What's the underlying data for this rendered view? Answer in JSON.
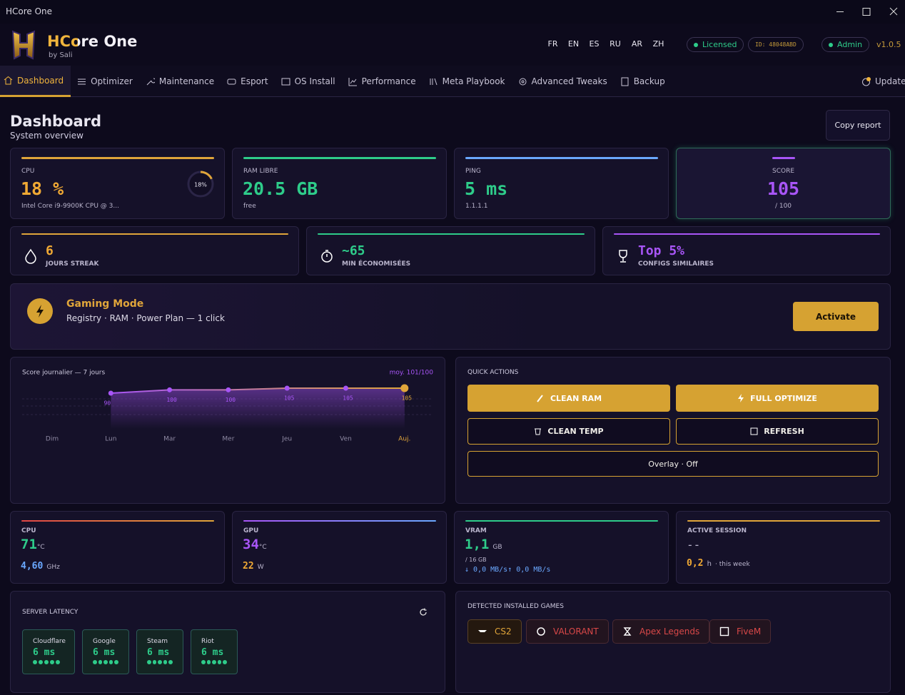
{
  "window": {
    "title": "HCore One"
  },
  "header": {
    "app_name": "HCore One",
    "byline": "by Sali",
    "languages": [
      "FR",
      "EN",
      "ES",
      "RU",
      "AR",
      "ZH"
    ],
    "license_status": "Licensed",
    "machine_id": "ID: 48048ABD",
    "role": "Admin",
    "version": "v1.0.5"
  },
  "nav": {
    "tabs": [
      "Dashboard",
      "Optimizer",
      "Maintenance",
      "Esport",
      "OS Install",
      "Performance",
      "Meta Playbook",
      "Advanced Tweaks",
      "Backup"
    ],
    "update": "Update"
  },
  "page": {
    "title": "Dashboard",
    "subtitle": "System overview",
    "copy_report": "Copy report"
  },
  "stat_cards": [
    {
      "label": "CPU",
      "value": "18 %",
      "detail": "Intel Core i9-9900K CPU @ 3...",
      "gauge": {
        "value": 18,
        "label": "18%"
      }
    },
    {
      "label": "RAM LIBRE",
      "value": "20.5 GB",
      "detail": "free"
    },
    {
      "label": "PING",
      "value": "5 ms",
      "detail": "1.1.1.1"
    },
    {
      "label": "SCORE",
      "value": "105",
      "detail": "/ 100"
    }
  ],
  "highlights": [
    {
      "value": "6",
      "label": "JOURS STREAK"
    },
    {
      "value": "~65",
      "label": "MIN ÉCONOMISÉES"
    },
    {
      "value": "Top 5%",
      "label": "CONFIGS SIMILAIRES"
    }
  ],
  "gaming_mode": {
    "title": "Gaming Mode",
    "description": "Registry · RAM · Power Plan — 1 click",
    "button": "Activate"
  },
  "score_chart": {
    "type": "line",
    "title": "Score journalier — 7 jours",
    "average": "moy. 101/100",
    "categories": [
      "Dim",
      "Lun",
      "Mar",
      "Mer",
      "Jeu",
      "Ven",
      "Auj."
    ],
    "values": [
      null,
      90,
      100,
      100,
      105,
      105,
      105
    ],
    "ylim": [
      0,
      120
    ]
  },
  "quick_actions": {
    "title": "QUICK ACTIONS",
    "buttons": [
      "CLEAN RAM",
      "FULL OPTIMIZE",
      "CLEAN TEMP",
      "REFRESH"
    ],
    "overlay": "Overlay · Off"
  },
  "hardware": [
    {
      "label": "CPU",
      "value": "71",
      "unit": "°C",
      "secondary": "4,60",
      "secondary_unit": "GHz"
    },
    {
      "label": "GPU",
      "value": "34",
      "unit": "°C",
      "secondary": "22",
      "secondary_unit": "W"
    },
    {
      "label": "VRAM",
      "value": "1,1",
      "unit": "GB",
      "total": "/ 16 GB",
      "traffic": "↓ 0,0 MB/s↑ 0,0 MB/s"
    },
    {
      "label": "ACTIVE SESSION",
      "value": "--",
      "secondary": "0,2",
      "secondary_unit": "h",
      "note": "· this week"
    }
  ],
  "server_latency": {
    "title": "SERVER LATENCY",
    "servers": [
      {
        "name": "Cloudflare",
        "latency": "6 ms"
      },
      {
        "name": "Google",
        "latency": "6 ms"
      },
      {
        "name": "Steam",
        "latency": "6 ms"
      },
      {
        "name": "Riot",
        "latency": "6 ms"
      }
    ]
  },
  "games": {
    "title": "DETECTED INSTALLED GAMES",
    "items": [
      "CS2",
      "VALORANT",
      "Apex Legends",
      "FiveM"
    ]
  }
}
